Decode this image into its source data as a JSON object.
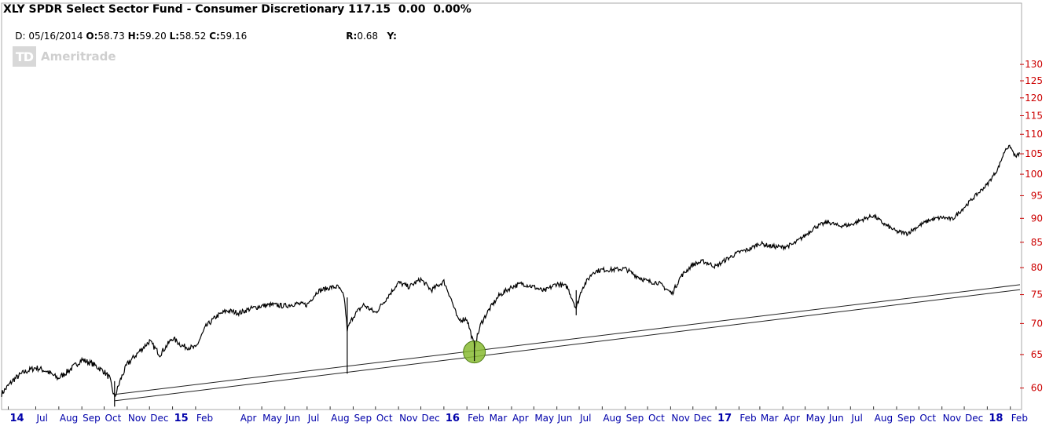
{
  "header": {
    "title": "XLY SPDR Select Sector Fund - Consumer Discretionary 117.15  0.00  0.00%",
    "d_label": "D:",
    "d_value": "05/16/2014",
    "o_label": "O:",
    "o_value": "58.73",
    "h_label": "H:",
    "h_value": "59.20",
    "l_label": "L:",
    "l_value": "58.52",
    "c_label": "C:",
    "c_value": "59.16",
    "r_label": "R:",
    "r_value": "0.68",
    "y_label": "Y:"
  },
  "watermark": {
    "logo": "TD",
    "text": "Ameritrade"
  },
  "colors": {
    "axis_text": "#cc0000",
    "date_text": "#0000aa",
    "price_line": "#000000",
    "trend_line": "#222222",
    "highlight_fill": "#88bb33",
    "border": "#999999"
  },
  "chart_data": {
    "type": "line",
    "title": "XLY SPDR Select Sector Fund - Consumer Discretionary",
    "xlabel": "",
    "ylabel": "",
    "y_scale": "log",
    "ylim": [
      57,
      131
    ],
    "xlim": [
      "2014-05-16",
      "2018-02-14"
    ],
    "grid": false,
    "y_ticks": [
      60,
      65,
      70,
      75,
      80,
      85,
      90,
      95,
      100,
      105,
      110,
      115,
      120,
      125,
      130
    ],
    "x_ticks": [
      {
        "date": "2014-05-25",
        "label": "14",
        "major": true
      },
      {
        "date": "2014-07-01",
        "label": "Jul",
        "major": false
      },
      {
        "date": "2014-08-01",
        "label": "Aug",
        "major": false
      },
      {
        "date": "2014-09-01",
        "label": "Sep",
        "major": false
      },
      {
        "date": "2014-10-01",
        "label": "Oct",
        "major": false
      },
      {
        "date": "2014-11-01",
        "label": "Nov",
        "major": false
      },
      {
        "date": "2014-12-01",
        "label": "Dec",
        "major": false
      },
      {
        "date": "2015-01-01",
        "label": "15",
        "major": true
      },
      {
        "date": "2015-02-01",
        "label": "Feb",
        "major": false
      },
      {
        "date": "2015-04-01",
        "label": "Apr",
        "major": false
      },
      {
        "date": "2015-05-01",
        "label": "May",
        "major": false
      },
      {
        "date": "2015-06-01",
        "label": "Jun",
        "major": false
      },
      {
        "date": "2015-07-01",
        "label": "Jul",
        "major": false
      },
      {
        "date": "2015-08-01",
        "label": "Aug",
        "major": false
      },
      {
        "date": "2015-09-01",
        "label": "Sep",
        "major": false
      },
      {
        "date": "2015-10-01",
        "label": "Oct",
        "major": false
      },
      {
        "date": "2015-11-01",
        "label": "Nov",
        "major": false
      },
      {
        "date": "2015-12-01",
        "label": "Dec",
        "major": false
      },
      {
        "date": "2016-01-01",
        "label": "16",
        "major": true
      },
      {
        "date": "2016-02-01",
        "label": "Feb",
        "major": false
      },
      {
        "date": "2016-03-01",
        "label": "Mar",
        "major": false
      },
      {
        "date": "2016-04-01",
        "label": "Apr",
        "major": false
      },
      {
        "date": "2016-05-01",
        "label": "May",
        "major": false
      },
      {
        "date": "2016-06-01",
        "label": "Jun",
        "major": false
      },
      {
        "date": "2016-07-01",
        "label": "Jul",
        "major": false
      },
      {
        "date": "2016-08-01",
        "label": "Aug",
        "major": false
      },
      {
        "date": "2016-09-01",
        "label": "Sep",
        "major": false
      },
      {
        "date": "2016-10-01",
        "label": "Oct",
        "major": false
      },
      {
        "date": "2016-11-01",
        "label": "Nov",
        "major": false
      },
      {
        "date": "2016-12-01",
        "label": "Dec",
        "major": false
      },
      {
        "date": "2017-01-01",
        "label": "17",
        "major": true
      },
      {
        "date": "2017-02-01",
        "label": "Feb",
        "major": false
      },
      {
        "date": "2017-03-01",
        "label": "Mar",
        "major": false
      },
      {
        "date": "2017-04-01",
        "label": "Apr",
        "major": false
      },
      {
        "date": "2017-05-01",
        "label": "May",
        "major": false
      },
      {
        "date": "2017-06-01",
        "label": "Jun",
        "major": false
      },
      {
        "date": "2017-07-01",
        "label": "Jul",
        "major": false
      },
      {
        "date": "2017-08-01",
        "label": "Aug",
        "major": false
      },
      {
        "date": "2017-09-01",
        "label": "Sep",
        "major": false
      },
      {
        "date": "2017-10-01",
        "label": "Oct",
        "major": false
      },
      {
        "date": "2017-11-01",
        "label": "Nov",
        "major": false
      },
      {
        "date": "2017-12-01",
        "label": "Dec",
        "major": false
      },
      {
        "date": "2018-01-01",
        "label": "18",
        "major": true
      },
      {
        "date": "2018-02-01",
        "label": "Feb",
        "major": false
      }
    ],
    "series": [
      {
        "type": "line",
        "points": [
          [
            "2014-05-16",
            59.2
          ],
          [
            "2014-06-01",
            61.2
          ],
          [
            "2014-06-15",
            62.3
          ],
          [
            "2014-07-01",
            63.0
          ],
          [
            "2014-07-15",
            62.5
          ],
          [
            "2014-07-31",
            61.4
          ],
          [
            "2014-08-15",
            62.6
          ],
          [
            "2014-09-01",
            64.2
          ],
          [
            "2014-09-15",
            63.6
          ],
          [
            "2014-10-01",
            62.4
          ],
          [
            "2014-10-08",
            61.5
          ],
          [
            "2014-10-15",
            58.6
          ],
          [
            "2014-10-23",
            61.2
          ],
          [
            "2014-11-01",
            63.5
          ],
          [
            "2014-11-15",
            65.2
          ],
          [
            "2014-12-01",
            67.1
          ],
          [
            "2014-12-15",
            65.0
          ],
          [
            "2015-01-01",
            67.6
          ],
          [
            "2015-01-15",
            66.3
          ],
          [
            "2015-02-01",
            66.0
          ],
          [
            "2015-02-15",
            69.5
          ],
          [
            "2015-03-01",
            71.2
          ],
          [
            "2015-03-15",
            72.2
          ],
          [
            "2015-04-01",
            71.8
          ],
          [
            "2015-04-15",
            72.5
          ],
          [
            "2015-05-01",
            73.0
          ],
          [
            "2015-05-15",
            73.2
          ],
          [
            "2015-06-01",
            73.0
          ],
          [
            "2015-06-15",
            73.4
          ],
          [
            "2015-07-01",
            73.2
          ],
          [
            "2015-07-15",
            75.6
          ],
          [
            "2015-08-01",
            76.3
          ],
          [
            "2015-08-12",
            76.4
          ],
          [
            "2015-08-20",
            74.5
          ],
          [
            "2015-08-24",
            69.0
          ],
          [
            "2015-09-01",
            71.2
          ],
          [
            "2015-09-15",
            73.2
          ],
          [
            "2015-10-01",
            71.8
          ],
          [
            "2015-10-15",
            74.2
          ],
          [
            "2015-11-01",
            77.2
          ],
          [
            "2015-11-15",
            76.4
          ],
          [
            "2015-12-01",
            77.8
          ],
          [
            "2015-12-15",
            75.8
          ],
          [
            "2016-01-01",
            77.4
          ],
          [
            "2016-01-10",
            74.5
          ],
          [
            "2016-01-20",
            70.6
          ],
          [
            "2016-02-01",
            70.8
          ],
          [
            "2016-02-11",
            66.2
          ],
          [
            "2016-02-20",
            70.0
          ],
          [
            "2016-03-01",
            72.2
          ],
          [
            "2016-03-15",
            74.8
          ],
          [
            "2016-04-01",
            76.4
          ],
          [
            "2016-04-15",
            77.0
          ],
          [
            "2016-05-01",
            76.4
          ],
          [
            "2016-05-15",
            75.6
          ],
          [
            "2016-06-01",
            77.0
          ],
          [
            "2016-06-15",
            76.4
          ],
          [
            "2016-06-27",
            72.6
          ],
          [
            "2016-07-05",
            76.2
          ],
          [
            "2016-07-20",
            79.2
          ],
          [
            "2016-08-01",
            79.6
          ],
          [
            "2016-08-15",
            79.6
          ],
          [
            "2016-09-01",
            79.8
          ],
          [
            "2016-09-15",
            78.5
          ],
          [
            "2016-10-01",
            77.4
          ],
          [
            "2016-10-15",
            77.2
          ],
          [
            "2016-11-03",
            75.2
          ],
          [
            "2016-11-15",
            78.4
          ],
          [
            "2016-12-01",
            80.6
          ],
          [
            "2016-12-15",
            81.2
          ],
          [
            "2017-01-01",
            80.2
          ],
          [
            "2017-01-15",
            81.6
          ],
          [
            "2017-02-01",
            83.0
          ],
          [
            "2017-02-15",
            83.6
          ],
          [
            "2017-03-01",
            84.8
          ],
          [
            "2017-03-15",
            84.2
          ],
          [
            "2017-04-01",
            84.0
          ],
          [
            "2017-04-15",
            84.6
          ],
          [
            "2017-05-01",
            86.4
          ],
          [
            "2017-05-15",
            88.2
          ],
          [
            "2017-06-01",
            89.2
          ],
          [
            "2017-06-15",
            88.4
          ],
          [
            "2017-07-01",
            88.6
          ],
          [
            "2017-07-15",
            89.6
          ],
          [
            "2017-08-01",
            90.6
          ],
          [
            "2017-08-15",
            88.8
          ],
          [
            "2017-09-01",
            87.2
          ],
          [
            "2017-09-15",
            86.8
          ],
          [
            "2017-10-01",
            88.4
          ],
          [
            "2017-10-15",
            89.6
          ],
          [
            "2017-11-01",
            90.2
          ],
          [
            "2017-11-15",
            89.8
          ],
          [
            "2017-12-01",
            92.4
          ],
          [
            "2017-12-15",
            94.8
          ],
          [
            "2018-01-01",
            97.6
          ],
          [
            "2018-01-15",
            101.2
          ],
          [
            "2018-01-26",
            106.4
          ],
          [
            "2018-02-01",
            106.8
          ],
          [
            "2018-02-08",
            104.2
          ],
          [
            "2018-02-14",
            105.2
          ]
        ]
      }
    ],
    "trendline": {
      "label": "",
      "start": [
        "2014-10-15",
        58.2
      ],
      "end": [
        "2018-02-14",
        75.9
      ],
      "offset": 0.9
    },
    "highlight": {
      "date": "2016-02-11",
      "value": 65.4
    }
  }
}
